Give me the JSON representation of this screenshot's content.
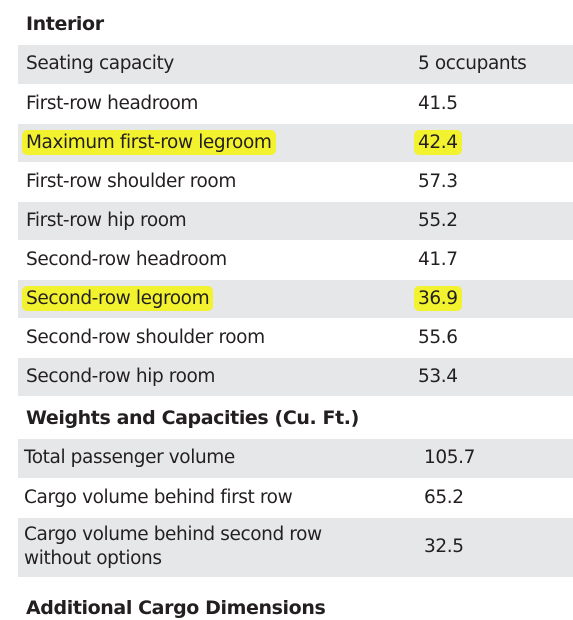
{
  "interior": {
    "title": "Interior",
    "rows": [
      {
        "label": "Seating capacity",
        "value": "5 occupants",
        "highlight": false
      },
      {
        "label": "First-row headroom",
        "value": "41.5",
        "highlight": false
      },
      {
        "label": "Maximum first-row legroom",
        "value": "42.4",
        "highlight": true
      },
      {
        "label": "First-row shoulder room",
        "value": "57.3",
        "highlight": false
      },
      {
        "label": "First-row hip room",
        "value": "55.2",
        "highlight": false
      },
      {
        "label": "Second-row headroom",
        "value": "41.7",
        "highlight": false
      },
      {
        "label": "Second-row legroom",
        "value": "36.9",
        "highlight": true
      },
      {
        "label": "Second-row shoulder room",
        "value": "55.6",
        "highlight": false
      },
      {
        "label": "Second-row hip room",
        "value": "53.4",
        "highlight": false
      }
    ]
  },
  "weights": {
    "title": "Weights and Capacities (Cu. Ft.)",
    "rows": [
      {
        "label": "Total passenger volume",
        "value": "105.7"
      },
      {
        "label": "Cargo volume behind first row",
        "value": "65.2"
      },
      {
        "label": "Cargo volume behind second row\nwithout options",
        "value": "32.5"
      }
    ]
  },
  "next_section": {
    "title": "Additional Cargo Dimensions"
  },
  "colors": {
    "shaded_row": "#e6e7e8",
    "highlight": "#f2f22e",
    "text": "#231f20"
  }
}
